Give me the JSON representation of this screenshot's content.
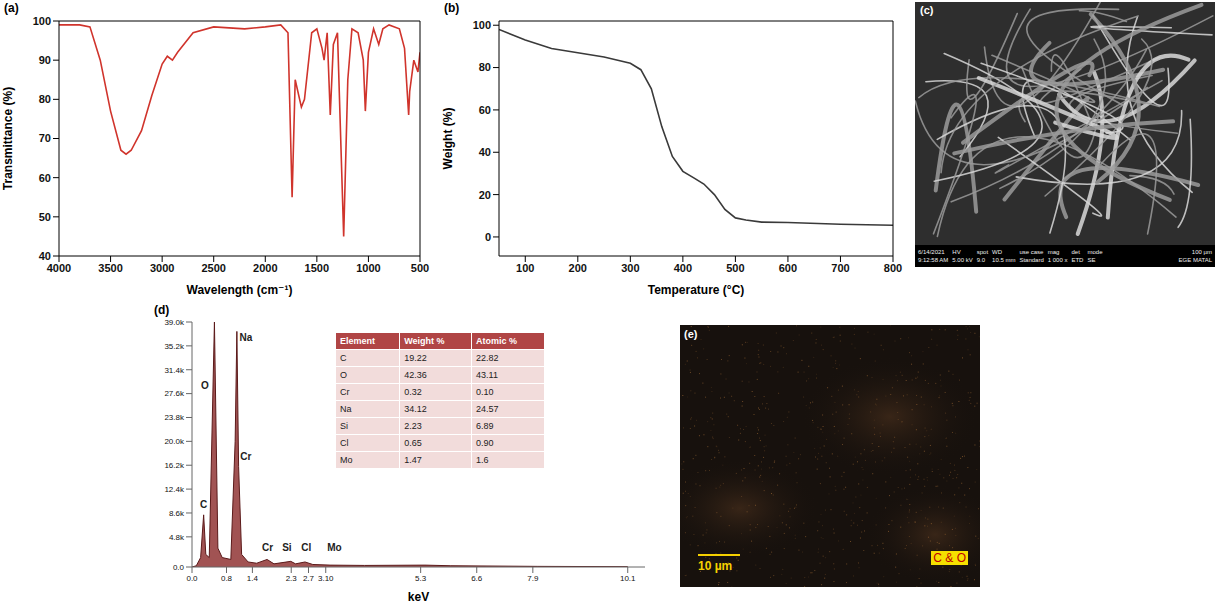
{
  "chart_data": [
    {
      "type": "line",
      "label": "(a)",
      "x_label": "Wavelength (cm⁻¹)",
      "y_label": "Transmittance (%)",
      "color": "#d0342c",
      "grid": false,
      "x": [
        4000,
        3800,
        3700,
        3600,
        3500,
        3400,
        3350,
        3300,
        3200,
        3100,
        3000,
        2950,
        2900,
        2850,
        2700,
        2500,
        2200,
        2000,
        1850,
        1780,
        1740,
        1710,
        1650,
        1620,
        1550,
        1500,
        1450,
        1430,
        1400,
        1370,
        1340,
        1300,
        1240,
        1200,
        1160,
        1100,
        1050,
        1030,
        1000,
        950,
        900,
        860,
        800,
        700,
        650,
        610,
        600,
        560,
        520,
        500
      ],
      "values": [
        99,
        99,
        98.5,
        90,
        77,
        67,
        66,
        67,
        72,
        81,
        89,
        91,
        90,
        92,
        97,
        98.5,
        98,
        98.5,
        99,
        97,
        55,
        85,
        78,
        80,
        97,
        98,
        93,
        90,
        97,
        76,
        94,
        97,
        45,
        85,
        98,
        97,
        90,
        77,
        92,
        98,
        94,
        98,
        99,
        98,
        93,
        76,
        82,
        90,
        87,
        92
      ],
      "xlim": [
        4000,
        500
      ],
      "xticks": [
        4000,
        3500,
        3000,
        2500,
        2000,
        1500,
        1000,
        500
      ],
      "ylim": [
        40,
        100
      ],
      "yticks": [
        40,
        50,
        60,
        70,
        80,
        90,
        100
      ]
    },
    {
      "type": "line",
      "label": "(b)",
      "x_label": "Temperature (°C)",
      "y_label": "Weight (%)",
      "color": "#3a3a3a",
      "grid": false,
      "x": [
        50,
        100,
        150,
        200,
        250,
        300,
        320,
        340,
        360,
        380,
        400,
        420,
        440,
        460,
        480,
        500,
        520,
        550,
        600,
        700,
        800
      ],
      "values": [
        98,
        93,
        89,
        87,
        85,
        82,
        79,
        70,
        52,
        38,
        31,
        28,
        25,
        20,
        13,
        9,
        8,
        7,
        6.8,
        6,
        5.5
      ],
      "xlim": [
        50,
        800
      ],
      "xticks": [
        100,
        200,
        300,
        400,
        500,
        600,
        700,
        800
      ],
      "ylim": [
        -9,
        102
      ],
      "yticks": [
        0,
        20,
        40,
        60,
        80,
        100
      ]
    },
    {
      "type": "area",
      "label": "(d)",
      "x_label": "keV",
      "color": "#9c4a4a",
      "grid": false,
      "x": [
        0,
        0.1,
        0.2,
        0.27,
        0.32,
        0.4,
        0.52,
        0.6,
        0.7,
        0.9,
        1.0,
        1.04,
        1.08,
        1.15,
        1.3,
        1.5,
        1.74,
        1.9,
        2.29,
        2.4,
        2.62,
        2.8,
        3.2,
        4,
        5.4,
        6,
        8,
        10.1
      ],
      "values": [
        0,
        200,
        1500,
        8300,
        2000,
        1500,
        39000,
        3000,
        1500,
        1200,
        20000,
        37500,
        16000,
        2000,
        800,
        600,
        1200,
        500,
        900,
        500,
        800,
        400,
        300,
        250,
        300,
        200,
        100,
        50
      ],
      "xlim": [
        0,
        10.5
      ],
      "xticks": [
        {
          "value": 0,
          "label": "0.0"
        },
        0.8,
        1.4,
        2.3,
        2.7,
        {
          "value": 3.1,
          "label": "3.10"
        },
        5.3,
        6.6,
        7.9,
        10.1
      ],
      "ylim": [
        0,
        39000
      ],
      "yticks": [
        {
          "value": 0,
          "label": "0.0"
        },
        {
          "value": 4800,
          "label": "4.8k"
        },
        {
          "value": 8600,
          "label": "8.6k"
        },
        {
          "value": 12400,
          "label": "12.4k"
        },
        {
          "value": 16200,
          "label": "16.2k"
        },
        {
          "value": 20000,
          "label": "20.0k"
        },
        {
          "value": 23800,
          "label": "23.8k"
        },
        {
          "value": 27600,
          "label": "27.6k"
        },
        {
          "value": 31400,
          "label": "31.4k"
        },
        {
          "value": 35200,
          "label": "35.2k"
        },
        {
          "value": 39000,
          "label": "39.0k"
        }
      ],
      "annotations": [
        {
          "text": "C",
          "x": 0.27,
          "y": 8600
        },
        {
          "text": "O",
          "x": 0.3,
          "y": 27600
        },
        {
          "text": "Na",
          "x": 1.25,
          "y": 35200
        },
        {
          "text": "Cr",
          "x": 1.25,
          "y": 16200
        },
        {
          "text": "Cr",
          "x": 1.75,
          "y": 1800
        },
        {
          "text": "Si",
          "x": 2.2,
          "y": 1800
        },
        {
          "text": "Cl",
          "x": 2.65,
          "y": 1800
        },
        {
          "text": "Mo",
          "x": 3.3,
          "y": 1800
        }
      ],
      "table": {
        "columns": [
          "Element",
          "Weight %",
          "Atomic %"
        ],
        "rows": [
          [
            "C",
            "19.22",
            "22.82"
          ],
          [
            "O",
            "42.36",
            "43.11"
          ],
          [
            "Cr",
            "0.32",
            "0.10"
          ],
          [
            "Na",
            "34.12",
            "24.57"
          ],
          [
            "Si",
            "2.23",
            "6.89"
          ],
          [
            "Cl",
            "0.65",
            "0.90"
          ],
          [
            "Mo",
            "1.47",
            "1.6"
          ]
        ]
      }
    }
  ],
  "images": [
    {
      "label": "(c)",
      "info_bar": [
        {
          "head": "6/14/2021",
          "value": "9:12:58 AM"
        },
        {
          "head": "HV",
          "value": "5.00 kV"
        },
        {
          "head": "spot",
          "value": "9.0"
        },
        {
          "head": "WD",
          "value": "10.5 mm"
        },
        {
          "head": "use case",
          "value": "Standard"
        },
        {
          "head": "mag",
          "value": "1 000 x"
        },
        {
          "head": "det",
          "value": "ETD"
        },
        {
          "head": "mode",
          "value": "SE"
        }
      ],
      "scale_bar": "100 µm",
      "institution": "EGE MATAL"
    },
    {
      "label": "(e)",
      "scale_bar": "10 µm",
      "map_label": "C & O"
    }
  ]
}
